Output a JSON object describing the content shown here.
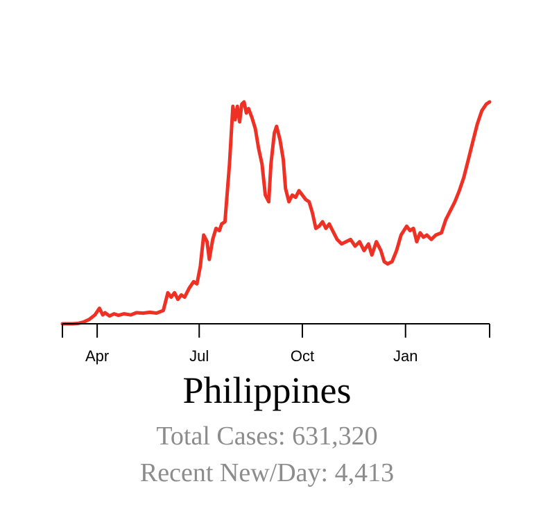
{
  "title": "Philippines",
  "stats": {
    "total_cases": "Total Cases: 631,320",
    "recent_new_per_day": "Recent New/Day: 4,413"
  },
  "colors": {
    "line": "#ee3124",
    "axis": "#000000",
    "stats_text": "#8c8c8c"
  },
  "chart_data": {
    "type": "line",
    "xlabel": "",
    "ylabel": "",
    "x_ticks": [
      {
        "label": "Apr",
        "x": "2020-04-01"
      },
      {
        "label": "Jul",
        "x": "2020-07-01"
      },
      {
        "label": "Oct",
        "x": "2020-10-01"
      },
      {
        "label": "Jan",
        "x": "2021-01-01"
      }
    ],
    "xlim": [
      "2020-03-01",
      "2021-03-17"
    ],
    "ylim": [
      0,
      1
    ],
    "grid": false,
    "series": [
      {
        "points": [
          [
            "2020-03-01",
            0.0
          ],
          [
            "2020-03-10",
            0.0
          ],
          [
            "2020-03-15",
            0.002
          ],
          [
            "2020-03-20",
            0.008
          ],
          [
            "2020-03-25",
            0.02
          ],
          [
            "2020-03-30",
            0.04
          ],
          [
            "2020-04-03",
            0.07
          ],
          [
            "2020-04-06",
            0.04
          ],
          [
            "2020-04-08",
            0.05
          ],
          [
            "2020-04-12",
            0.035
          ],
          [
            "2020-04-16",
            0.045
          ],
          [
            "2020-04-20",
            0.038
          ],
          [
            "2020-04-25",
            0.045
          ],
          [
            "2020-05-01",
            0.04
          ],
          [
            "2020-05-06",
            0.05
          ],
          [
            "2020-05-12",
            0.048
          ],
          [
            "2020-05-18",
            0.052
          ],
          [
            "2020-05-24",
            0.048
          ],
          [
            "2020-05-30",
            0.06
          ],
          [
            "2020-06-03",
            0.14
          ],
          [
            "2020-06-06",
            0.12
          ],
          [
            "2020-06-09",
            0.14
          ],
          [
            "2020-06-12",
            0.11
          ],
          [
            "2020-06-15",
            0.13
          ],
          [
            "2020-06-18",
            0.12
          ],
          [
            "2020-06-22",
            0.16
          ],
          [
            "2020-06-26",
            0.19
          ],
          [
            "2020-06-29",
            0.18
          ],
          [
            "2020-07-02",
            0.26
          ],
          [
            "2020-07-05",
            0.4
          ],
          [
            "2020-07-08",
            0.37
          ],
          [
            "2020-07-10",
            0.29
          ],
          [
            "2020-07-13",
            0.38
          ],
          [
            "2020-07-16",
            0.43
          ],
          [
            "2020-07-19",
            0.42
          ],
          [
            "2020-07-21",
            0.45
          ],
          [
            "2020-07-24",
            0.46
          ],
          [
            "2020-07-28",
            0.72
          ],
          [
            "2020-07-31",
            0.98
          ],
          [
            "2020-08-02",
            0.92
          ],
          [
            "2020-08-04",
            0.98
          ],
          [
            "2020-08-06",
            0.91
          ],
          [
            "2020-08-08",
            0.99
          ],
          [
            "2020-08-10",
            1.0
          ],
          [
            "2020-08-12",
            0.95
          ],
          [
            "2020-08-14",
            0.97
          ],
          [
            "2020-08-17",
            0.93
          ],
          [
            "2020-08-20",
            0.88
          ],
          [
            "2020-08-23",
            0.79
          ],
          [
            "2020-08-26",
            0.72
          ],
          [
            "2020-08-29",
            0.58
          ],
          [
            "2020-09-01",
            0.55
          ],
          [
            "2020-09-03",
            0.72
          ],
          [
            "2020-09-06",
            0.86
          ],
          [
            "2020-09-08",
            0.89
          ],
          [
            "2020-09-11",
            0.83
          ],
          [
            "2020-09-14",
            0.74
          ],
          [
            "2020-09-16",
            0.61
          ],
          [
            "2020-09-19",
            0.55
          ],
          [
            "2020-09-22",
            0.58
          ],
          [
            "2020-09-25",
            0.57
          ],
          [
            "2020-09-28",
            0.6
          ],
          [
            "2020-10-01",
            0.58
          ],
          [
            "2020-10-04",
            0.56
          ],
          [
            "2020-10-07",
            0.55
          ],
          [
            "2020-10-10",
            0.5
          ],
          [
            "2020-10-13",
            0.43
          ],
          [
            "2020-10-16",
            0.44
          ],
          [
            "2020-10-19",
            0.46
          ],
          [
            "2020-10-22",
            0.43
          ],
          [
            "2020-10-25",
            0.45
          ],
          [
            "2020-10-28",
            0.42
          ],
          [
            "2020-11-01",
            0.38
          ],
          [
            "2020-11-05",
            0.36
          ],
          [
            "2020-11-09",
            0.37
          ],
          [
            "2020-11-13",
            0.38
          ],
          [
            "2020-11-17",
            0.35
          ],
          [
            "2020-11-21",
            0.37
          ],
          [
            "2020-11-25",
            0.33
          ],
          [
            "2020-11-29",
            0.36
          ],
          [
            "2020-12-02",
            0.31
          ],
          [
            "2020-12-06",
            0.37
          ],
          [
            "2020-12-10",
            0.33
          ],
          [
            "2020-12-13",
            0.28
          ],
          [
            "2020-12-16",
            0.27
          ],
          [
            "2020-12-20",
            0.28
          ],
          [
            "2020-12-24",
            0.33
          ],
          [
            "2020-12-28",
            0.4
          ],
          [
            "2021-01-02",
            0.44
          ],
          [
            "2021-01-05",
            0.42
          ],
          [
            "2021-01-08",
            0.43
          ],
          [
            "2021-01-11",
            0.37
          ],
          [
            "2021-01-14",
            0.41
          ],
          [
            "2021-01-17",
            0.39
          ],
          [
            "2021-01-20",
            0.4
          ],
          [
            "2021-01-24",
            0.38
          ],
          [
            "2021-01-28",
            0.4
          ],
          [
            "2021-02-02",
            0.41
          ],
          [
            "2021-02-06",
            0.47
          ],
          [
            "2021-02-10",
            0.51
          ],
          [
            "2021-02-14",
            0.55
          ],
          [
            "2021-02-18",
            0.6
          ],
          [
            "2021-02-22",
            0.66
          ],
          [
            "2021-02-26",
            0.74
          ],
          [
            "2021-03-02",
            0.82
          ],
          [
            "2021-03-06",
            0.9
          ],
          [
            "2021-03-10",
            0.96
          ],
          [
            "2021-03-14",
            0.99
          ],
          [
            "2021-03-17",
            1.0
          ]
        ]
      }
    ]
  }
}
